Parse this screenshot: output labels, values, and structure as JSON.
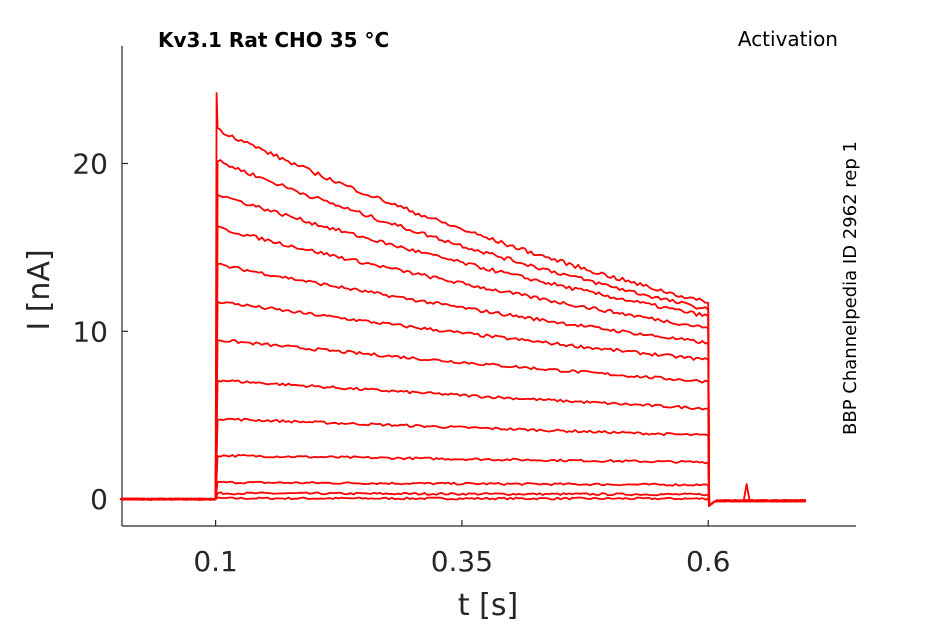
{
  "chart_data": {
    "type": "line",
    "title": "Kv3.1  Rat  CHO  35 °C",
    "protocol": "Activation",
    "side_label": "BBP Channelpedia ID 2962 rep 1",
    "xlabel": "t [s]",
    "ylabel": "I [nA]",
    "xlim": [
      0.005,
      0.75
    ],
    "ylim": [
      -1.6,
      27.0
    ],
    "x_ticks": [
      0.1,
      0.35,
      0.6
    ],
    "x_tick_labels": [
      "0.1",
      "0.35",
      "0.6"
    ],
    "y_ticks": [
      0,
      10,
      20
    ],
    "y_tick_labels": [
      "0",
      "10",
      "20"
    ],
    "grid": false,
    "legend": "none",
    "line_color": "#ff0000",
    "pre_pulse_start": 0.003,
    "pulse_on": 0.1,
    "pulse_off": 0.6,
    "trace_end": 0.7,
    "spike_peak": 24.2,
    "artifact_time": 0.64,
    "artifact_peak": 0.9,
    "series": [
      {
        "i_start": 0.05,
        "i_end": 0.03
      },
      {
        "i_start": 0.35,
        "i_end": 0.28
      },
      {
        "i_start": 1.0,
        "i_end": 0.85
      },
      {
        "i_start": 2.6,
        "i_end": 2.2
      },
      {
        "i_start": 4.8,
        "i_end": 3.8
      },
      {
        "i_start": 7.1,
        "i_end": 5.4
      },
      {
        "i_start": 9.5,
        "i_end": 7.0
      },
      {
        "i_start": 11.8,
        "i_end": 8.3
      },
      {
        "i_start": 14.0,
        "i_end": 9.3
      },
      {
        "i_start": 16.2,
        "i_end": 10.2
      },
      {
        "i_start": 18.2,
        "i_end": 10.9
      },
      {
        "i_start": 20.2,
        "i_end": 11.3
      },
      {
        "i_start": 22.1,
        "i_end": 11.7
      }
    ]
  }
}
